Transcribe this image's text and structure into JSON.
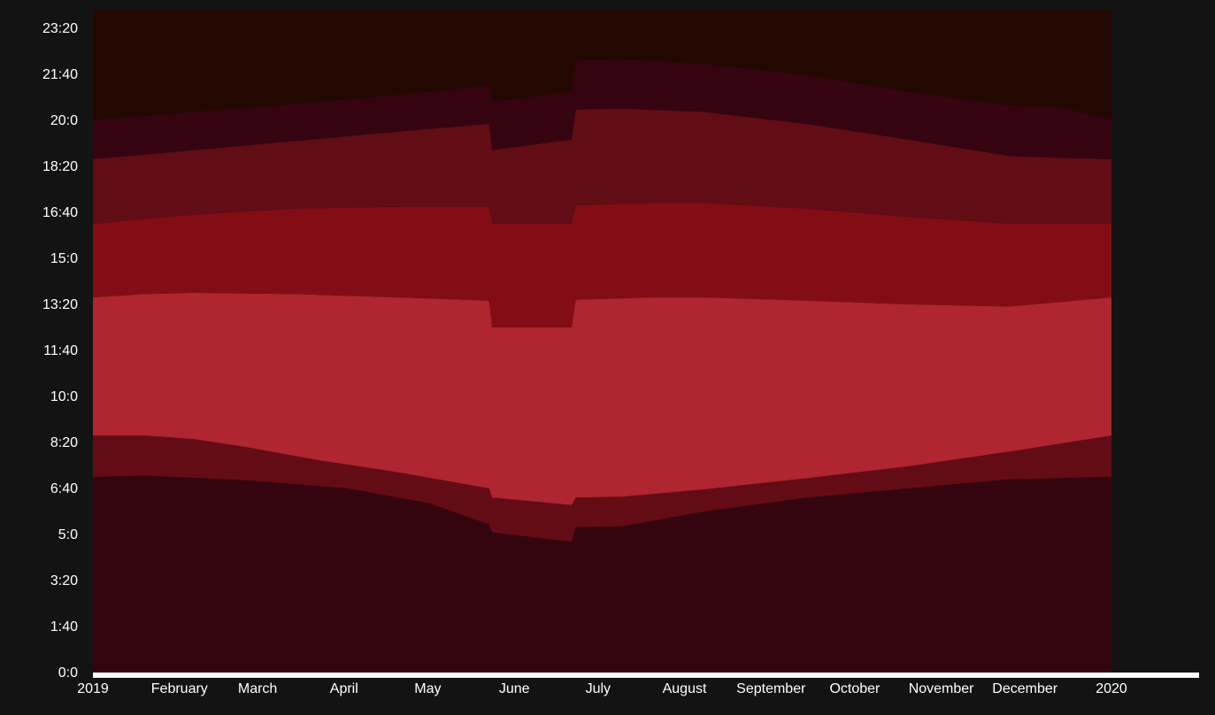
{
  "chart_data": {
    "type": "area",
    "title": "",
    "xlabel": "",
    "ylabel": "",
    "x_ticks": [
      "2019",
      "February",
      "March",
      "April",
      "May",
      "June",
      "July",
      "August",
      "September",
      "October",
      "November",
      "December",
      "2020"
    ],
    "y_ticks": [
      "0:0",
      "1:40",
      "3:20",
      "5:0",
      "6:40",
      "8:20",
      "10:0",
      "11:40",
      "13:20",
      "15:0",
      "16:40",
      "18:20",
      "20:0",
      "21:40",
      "23:20"
    ],
    "ylim_minutes": [
      0,
      1440
    ],
    "x_range": [
      "2019-01-01",
      "2020-01-01"
    ],
    "dst_transitions": [
      "2019-05-01",
      "2019-06-06"
    ],
    "series": [
      {
        "color": "#35050f",
        "lower": [
          [
            0,
            0
          ],
          [
            1,
            0
          ]
        ],
        "upper": [
          [
            0,
            425
          ],
          [
            0.05,
            428
          ],
          [
            0.15,
            418
          ],
          [
            0.25,
            400
          ],
          [
            0.33,
            368
          ],
          [
            0.389,
            322
          ],
          [
            0.392,
            305
          ],
          [
            0.47,
            284
          ],
          [
            0.474,
            316
          ],
          [
            0.52,
            318
          ],
          [
            0.6,
            350
          ],
          [
            0.7,
            380
          ],
          [
            0.8,
            400
          ],
          [
            0.9,
            420
          ],
          [
            1,
            425
          ]
        ]
      },
      {
        "color": "#640c16",
        "lower": [
          [
            0,
            425
          ],
          [
            0.05,
            428
          ],
          [
            0.15,
            418
          ],
          [
            0.25,
            400
          ],
          [
            0.33,
            368
          ],
          [
            0.389,
            322
          ],
          [
            0.392,
            305
          ],
          [
            0.47,
            284
          ],
          [
            0.474,
            316
          ],
          [
            0.52,
            318
          ],
          [
            0.6,
            350
          ],
          [
            0.7,
            380
          ],
          [
            0.8,
            400
          ],
          [
            0.9,
            420
          ],
          [
            1,
            425
          ]
        ],
        "upper": [
          [
            0,
            515
          ],
          [
            0.05,
            515
          ],
          [
            0.1,
            507
          ],
          [
            0.15,
            490
          ],
          [
            0.22,
            462
          ],
          [
            0.3,
            435
          ],
          [
            0.389,
            400
          ],
          [
            0.392,
            380
          ],
          [
            0.47,
            364
          ],
          [
            0.474,
            380
          ],
          [
            0.52,
            382
          ],
          [
            0.6,
            398
          ],
          [
            0.7,
            422
          ],
          [
            0.8,
            448
          ],
          [
            0.9,
            480
          ],
          [
            1,
            515
          ]
        ]
      },
      {
        "color": "#af2530",
        "lower": [
          [
            0,
            515
          ],
          [
            0.05,
            515
          ],
          [
            0.1,
            507
          ],
          [
            0.15,
            490
          ],
          [
            0.22,
            462
          ],
          [
            0.3,
            435
          ],
          [
            0.389,
            400
          ],
          [
            0.392,
            380
          ],
          [
            0.47,
            364
          ],
          [
            0.474,
            380
          ],
          [
            0.52,
            382
          ],
          [
            0.6,
            398
          ],
          [
            0.7,
            422
          ],
          [
            0.8,
            448
          ],
          [
            0.9,
            480
          ],
          [
            1,
            515
          ]
        ],
        "upper": [
          [
            0,
            815
          ],
          [
            0.05,
            822
          ],
          [
            0.1,
            825
          ],
          [
            0.2,
            822
          ],
          [
            0.3,
            815
          ],
          [
            0.389,
            808
          ],
          [
            0.392,
            750
          ],
          [
            0.47,
            750
          ],
          [
            0.474,
            810
          ],
          [
            0.55,
            815
          ],
          [
            0.6,
            815
          ],
          [
            0.7,
            808
          ],
          [
            0.8,
            800
          ],
          [
            0.9,
            795
          ],
          [
            0.95,
            805
          ],
          [
            1,
            815
          ]
        ]
      },
      {
        "color": "#830d15",
        "lower": [
          [
            0,
            815
          ],
          [
            0.05,
            822
          ],
          [
            0.1,
            825
          ],
          [
            0.2,
            822
          ],
          [
            0.3,
            815
          ],
          [
            0.389,
            808
          ],
          [
            0.392,
            750
          ],
          [
            0.47,
            750
          ],
          [
            0.474,
            810
          ],
          [
            0.55,
            815
          ],
          [
            0.6,
            815
          ],
          [
            0.7,
            808
          ],
          [
            0.8,
            800
          ],
          [
            0.9,
            795
          ],
          [
            0.95,
            805
          ],
          [
            1,
            815
          ]
        ],
        "upper": [
          [
            0,
            975
          ],
          [
            0.1,
            995
          ],
          [
            0.2,
            1008
          ],
          [
            0.3,
            1012
          ],
          [
            0.389,
            1012
          ],
          [
            0.392,
            975
          ],
          [
            0.47,
            975
          ],
          [
            0.474,
            1015
          ],
          [
            0.55,
            1020
          ],
          [
            0.6,
            1020
          ],
          [
            0.7,
            1008
          ],
          [
            0.8,
            990
          ],
          [
            0.9,
            975
          ],
          [
            0.95,
            975
          ],
          [
            1,
            975
          ]
        ]
      },
      {
        "color": "#620c16",
        "lower": [
          [
            0,
            975
          ],
          [
            0.1,
            995
          ],
          [
            0.2,
            1008
          ],
          [
            0.3,
            1012
          ],
          [
            0.389,
            1012
          ],
          [
            0.392,
            975
          ],
          [
            0.47,
            975
          ],
          [
            0.474,
            1015
          ],
          [
            0.55,
            1020
          ],
          [
            0.6,
            1020
          ],
          [
            0.7,
            1008
          ],
          [
            0.8,
            990
          ],
          [
            0.9,
            975
          ],
          [
            0.95,
            975
          ],
          [
            1,
            975
          ]
        ],
        "upper": [
          [
            0,
            1115
          ],
          [
            0.1,
            1135
          ],
          [
            0.2,
            1155
          ],
          [
            0.3,
            1175
          ],
          [
            0.389,
            1192
          ],
          [
            0.392,
            1135
          ],
          [
            0.47,
            1158
          ],
          [
            0.474,
            1223
          ],
          [
            0.52,
            1225
          ],
          [
            0.6,
            1218
          ],
          [
            0.7,
            1192
          ],
          [
            0.8,
            1158
          ],
          [
            0.9,
            1122
          ],
          [
            0.95,
            1118
          ],
          [
            1,
            1115
          ]
        ]
      },
      {
        "color": "#350410",
        "lower": [
          [
            0,
            1115
          ],
          [
            0.1,
            1135
          ],
          [
            0.2,
            1155
          ],
          [
            0.3,
            1175
          ],
          [
            0.389,
            1192
          ],
          [
            0.392,
            1135
          ],
          [
            0.47,
            1158
          ],
          [
            0.474,
            1223
          ],
          [
            0.52,
            1225
          ],
          [
            0.6,
            1218
          ],
          [
            0.7,
            1192
          ],
          [
            0.8,
            1158
          ],
          [
            0.9,
            1122
          ],
          [
            0.95,
            1118
          ],
          [
            1,
            1115
          ]
        ],
        "upper": [
          [
            0,
            1200
          ],
          [
            0.1,
            1218
          ],
          [
            0.2,
            1235
          ],
          [
            0.3,
            1255
          ],
          [
            0.389,
            1275
          ],
          [
            0.392,
            1240
          ],
          [
            0.47,
            1262
          ],
          [
            0.474,
            1330
          ],
          [
            0.52,
            1332
          ],
          [
            0.6,
            1322
          ],
          [
            0.7,
            1298
          ],
          [
            0.8,
            1262
          ],
          [
            0.9,
            1232
          ],
          [
            0.95,
            1228
          ],
          [
            1,
            1200
          ]
        ]
      },
      {
        "color": "#230802",
        "lower": [
          [
            0,
            1200
          ],
          [
            0.1,
            1218
          ],
          [
            0.2,
            1235
          ],
          [
            0.3,
            1255
          ],
          [
            0.389,
            1275
          ],
          [
            0.392,
            1240
          ],
          [
            0.47,
            1262
          ],
          [
            0.474,
            1330
          ],
          [
            0.52,
            1332
          ],
          [
            0.6,
            1322
          ],
          [
            0.7,
            1298
          ],
          [
            0.8,
            1262
          ],
          [
            0.9,
            1232
          ],
          [
            0.95,
            1228
          ],
          [
            1,
            1200
          ]
        ],
        "upper": [
          [
            0,
            1440
          ],
          [
            1,
            1440
          ]
        ]
      }
    ]
  }
}
